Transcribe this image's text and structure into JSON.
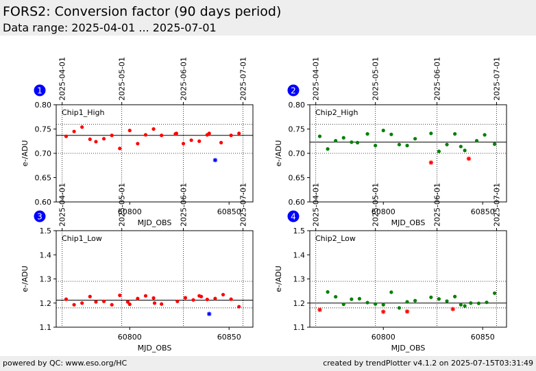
{
  "header": {
    "title": "FORS2: Conversion factor (90 days period)",
    "subtitle": "Data range: 2025-04-01 ... 2025-07-01"
  },
  "footer": {
    "left": "powered by QC: www.eso.org/HC",
    "right": "created by trendPlotter v4.1.2 on 2025-07-15T03:31:49"
  },
  "colors": {
    "normal": "#ff0000",
    "outlier": "#0000ff",
    "good": "#008000",
    "badge": "#0000ff"
  },
  "chart_data": [
    {
      "type": "scatter",
      "panel": "1",
      "label": "Chip1_High",
      "xlabel": "MJD_OBS",
      "ylabel": "e-/ADU",
      "xlim": [
        60763,
        60862
      ],
      "ylim": [
        0.6,
        0.8
      ],
      "yticks": [
        "0.60",
        "0.65",
        "0.70",
        "0.75",
        "0.80"
      ],
      "xticks": [
        "60800",
        "60850"
      ],
      "date_ticks": [
        {
          "label": "2025-04-01",
          "mjd": 60766
        },
        {
          "label": "2025-05-01",
          "mjd": 60796
        },
        {
          "label": "2025-06-01",
          "mjd": 60827
        },
        {
          "label": "2025-07-01",
          "mjd": 60857
        }
      ],
      "mean": 0.737,
      "band": [
        0.7,
        0.76
      ],
      "points": [
        [
          60768,
          0.735
        ],
        [
          60772,
          0.745
        ],
        [
          60776,
          0.754
        ],
        [
          60780,
          0.729
        ],
        [
          60783,
          0.724
        ],
        [
          60787,
          0.73
        ],
        [
          60791,
          0.737
        ],
        [
          60795,
          0.71
        ],
        [
          60800,
          0.747
        ],
        [
          60804,
          0.72
        ],
        [
          60808,
          0.738
        ],
        [
          60812,
          0.75
        ],
        [
          60816,
          0.737
        ],
        [
          60823,
          0.74
        ],
        [
          60823.5,
          0.741
        ],
        [
          60827,
          0.72
        ],
        [
          60831,
          0.727
        ],
        [
          60835,
          0.725
        ],
        [
          60839,
          0.738
        ],
        [
          60840,
          0.741
        ],
        [
          60846,
          0.722
        ],
        [
          60851,
          0.737
        ],
        [
          60855,
          0.741
        ]
      ],
      "outliers": [
        [
          60843,
          0.686
        ]
      ]
    },
    {
      "type": "scatter",
      "panel": "2",
      "label": "Chip2_High",
      "xlabel": "MJD_OBS",
      "ylabel": "e-/ADU",
      "xlim": [
        60763,
        60862
      ],
      "ylim": [
        0.6,
        0.8
      ],
      "yticks": [
        "0.60",
        "0.65",
        "0.70",
        "0.75",
        "0.80"
      ],
      "xticks": [
        "60800",
        "60850"
      ],
      "date_ticks": [
        {
          "label": "2025-04-01",
          "mjd": 60766
        },
        {
          "label": "2025-05-01",
          "mjd": 60796
        },
        {
          "label": "2025-06-01",
          "mjd": 60827
        },
        {
          "label": "2025-07-01",
          "mjd": 60857
        }
      ],
      "mean": 0.723,
      "band": [
        0.7,
        0.76
      ],
      "points": [
        [
          60768,
          0.735
        ],
        [
          60772,
          0.709
        ],
        [
          60776,
          0.726
        ],
        [
          60780,
          0.732
        ],
        [
          60784,
          0.723
        ],
        [
          60787,
          0.722
        ],
        [
          60792,
          0.74
        ],
        [
          60796,
          0.716
        ],
        [
          60800,
          0.747
        ],
        [
          60804,
          0.739
        ],
        [
          60808,
          0.718
        ],
        [
          60812,
          0.716
        ],
        [
          60816,
          0.73
        ],
        [
          60824,
          0.741
        ],
        [
          60828,
          0.704
        ],
        [
          60832,
          0.718
        ],
        [
          60836,
          0.74
        ],
        [
          60839,
          0.714
        ],
        [
          60841,
          0.706
        ],
        [
          60847,
          0.726
        ],
        [
          60851,
          0.738
        ],
        [
          60856,
          0.719
        ]
      ],
      "outliers": [
        [
          60824,
          0.681
        ],
        [
          60843,
          0.689
        ]
      ]
    },
    {
      "type": "scatter",
      "panel": "3",
      "label": "Chip1_Low",
      "xlabel": "MJD_OBS",
      "ylabel": "e-/ADU",
      "xlim": [
        60763,
        60862
      ],
      "ylim": [
        1.1,
        1.5
      ],
      "yticks": [
        "1.1",
        "1.2",
        "1.3",
        "1.4",
        "1.5"
      ],
      "xticks": [
        "60800",
        "60850"
      ],
      "date_ticks": [
        {
          "label": "2025-04-01",
          "mjd": 60766
        },
        {
          "label": "2025-05-01",
          "mjd": 60796
        },
        {
          "label": "2025-06-01",
          "mjd": 60827
        },
        {
          "label": "2025-07-01",
          "mjd": 60857
        }
      ],
      "mean": 1.212,
      "band": [
        1.18,
        1.29
      ],
      "points": [
        [
          60768,
          1.216
        ],
        [
          60772,
          1.193
        ],
        [
          60776,
          1.2
        ],
        [
          60780,
          1.227
        ],
        [
          60783,
          1.205
        ],
        [
          60787,
          1.207
        ],
        [
          60791,
          1.193
        ],
        [
          60795,
          1.232
        ],
        [
          60799,
          1.205
        ],
        [
          60800,
          1.195
        ],
        [
          60804,
          1.219
        ],
        [
          60808,
          1.23
        ],
        [
          60812,
          1.221
        ],
        [
          60812.5,
          1.2
        ],
        [
          60816,
          1.196
        ],
        [
          60824,
          1.207
        ],
        [
          60828,
          1.222
        ],
        [
          60832,
          1.213
        ],
        [
          60835,
          1.23
        ],
        [
          60836,
          1.227
        ],
        [
          60839,
          1.215
        ],
        [
          60843,
          1.219
        ],
        [
          60847,
          1.235
        ],
        [
          60851,
          1.216
        ],
        [
          60855,
          1.185
        ]
      ],
      "outliers": [
        [
          60840,
          1.155
        ]
      ]
    },
    {
      "type": "scatter",
      "panel": "4",
      "label": "Chip2_Low",
      "xlabel": "MJD_OBS",
      "ylabel": "e-/ADU",
      "xlim": [
        60763,
        60862
      ],
      "ylim": [
        1.1,
        1.5
      ],
      "yticks": [
        "1.1",
        "1.2",
        "1.3",
        "1.4",
        "1.5"
      ],
      "xticks": [
        "60800",
        "60850"
      ],
      "date_ticks": [
        {
          "label": "2025-04-01",
          "mjd": 60766
        },
        {
          "label": "2025-05-01",
          "mjd": 60796
        },
        {
          "label": "2025-06-01",
          "mjd": 60827
        },
        {
          "label": "2025-07-01",
          "mjd": 60857
        }
      ],
      "mean": 1.2,
      "band": [
        1.18,
        1.29
      ],
      "points": [
        [
          60772,
          1.246
        ],
        [
          60776,
          1.226
        ],
        [
          60780,
          1.195
        ],
        [
          60784,
          1.216
        ],
        [
          60788,
          1.218
        ],
        [
          60792,
          1.202
        ],
        [
          60796,
          1.196
        ],
        [
          60800,
          1.193
        ],
        [
          60804,
          1.245
        ],
        [
          60808,
          1.18
        ],
        [
          60812,
          1.205
        ],
        [
          60816,
          1.21
        ],
        [
          60824,
          1.224
        ],
        [
          60828,
          1.217
        ],
        [
          60832,
          1.208
        ],
        [
          60836,
          1.227
        ],
        [
          60839,
          1.193
        ],
        [
          60841,
          1.188
        ],
        [
          60844,
          1.2
        ],
        [
          60848,
          1.199
        ],
        [
          60852,
          1.203
        ],
        [
          60856,
          1.241
        ]
      ],
      "outliers": [
        [
          60768,
          1.172
        ],
        [
          60800,
          1.164
        ],
        [
          60812,
          1.165
        ],
        [
          60835,
          1.175
        ]
      ]
    }
  ]
}
